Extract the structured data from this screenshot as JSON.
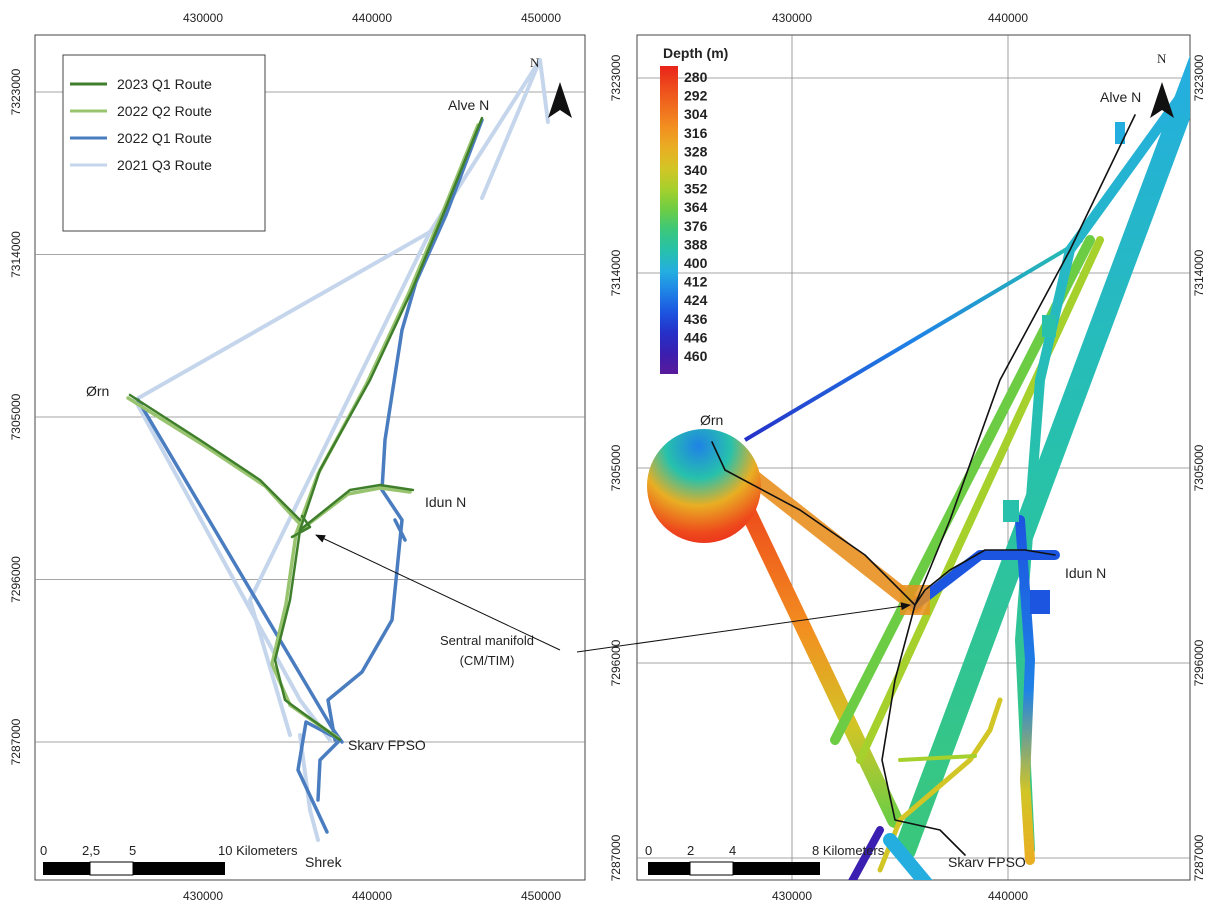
{
  "left_map": {
    "legend": [
      "2023 Q1 Route",
      "2022 Q2 Route",
      "2022 Q1 Route",
      "2021 Q3 Route"
    ],
    "legend_colors": [
      "#3f7f2c",
      "#98c46f",
      "#4a7cc0",
      "#c5d6ec"
    ],
    "places": [
      "Alve N",
      "Ørn",
      "Idun N",
      "Skarv FPSO",
      "Shrek"
    ],
    "x_ticks": [
      430000,
      440000,
      450000
    ],
    "y_ticks": [
      7323000,
      7314000,
      7305000,
      7296000,
      7287000
    ],
    "scale_labels": [
      "0",
      "2,5",
      "5",
      "10 Kilometers"
    ],
    "north": "N"
  },
  "annotation": [
    "Sentral manifold",
    "(CM/TIM)"
  ],
  "right_map": {
    "legend_title": "Depth (m)",
    "depths": [
      280,
      292,
      304,
      316,
      328,
      340,
      352,
      364,
      376,
      388,
      400,
      412,
      424,
      436,
      446,
      460
    ],
    "depth_colors": [
      "#e8231a",
      "#ee4a1c",
      "#f06d1e",
      "#f29020",
      "#e9ae23",
      "#d2c526",
      "#a6d02c",
      "#6ccd45",
      "#3ac77c",
      "#27c1ac",
      "#24aee0",
      "#1f82e6",
      "#1c55e0",
      "#2530c8",
      "#3a1fb0",
      "#5a1a9a"
    ],
    "places": [
      "Alve N",
      "Ørn",
      "Idun N",
      "Skarv FPSO"
    ],
    "x_ticks": [
      430000,
      440000
    ],
    "y_ticks": [
      7323000,
      7314000,
      7305000,
      7296000,
      7287000
    ],
    "scale_labels": [
      "0",
      "2",
      "4",
      "8 Kilometers"
    ],
    "north": "N"
  }
}
